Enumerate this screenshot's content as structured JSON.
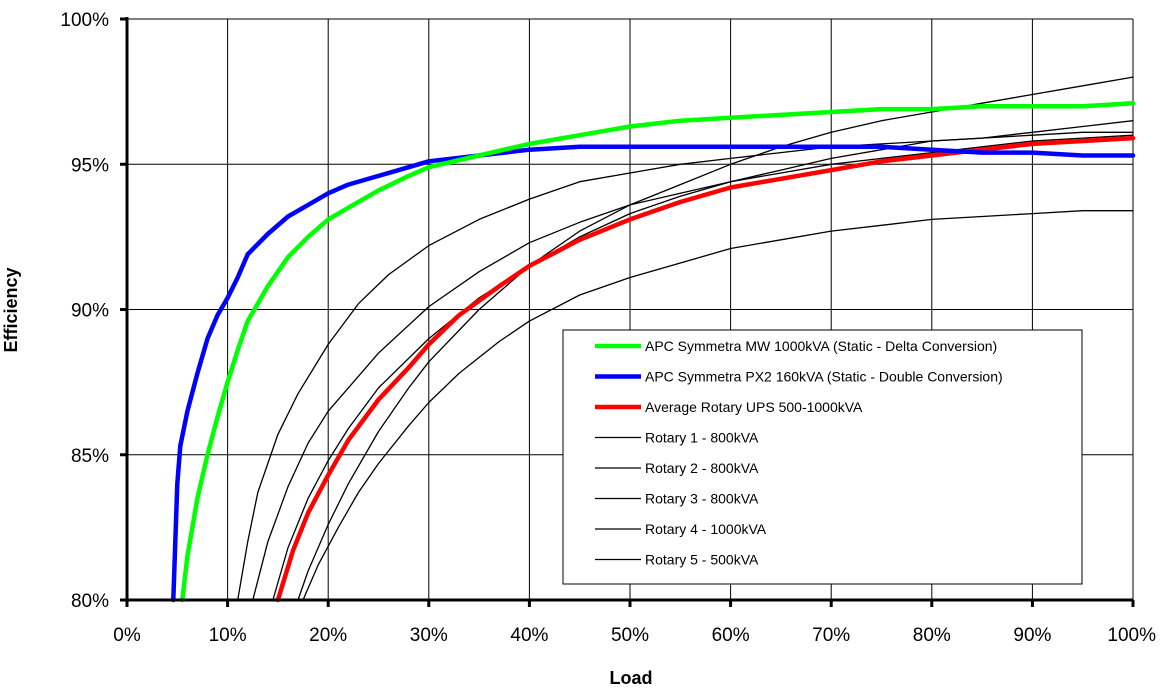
{
  "chart_data": {
    "type": "line",
    "xlabel": "Load",
    "ylabel": "Efficiency",
    "xlim": [
      0,
      100
    ],
    "ylim": [
      80,
      100
    ],
    "grid": true,
    "legend_position": "bottom-right",
    "x_ticks": [
      "0%",
      "10%",
      "20%",
      "30%",
      "40%",
      "50%",
      "60%",
      "70%",
      "80%",
      "90%",
      "100%"
    ],
    "y_ticks": [
      "80%",
      "85%",
      "90%",
      "95%",
      "100%"
    ],
    "series": [
      {
        "name": "Rotary 1 - 800kVA",
        "color": "#000000",
        "points": [
          [
            11,
            80
          ],
          [
            12,
            82
          ],
          [
            13,
            83.7
          ],
          [
            15,
            85.7
          ],
          [
            17,
            87.1
          ],
          [
            20,
            88.8
          ],
          [
            23,
            90.2
          ],
          [
            26,
            91.2
          ],
          [
            30,
            92.2
          ],
          [
            35,
            93.1
          ],
          [
            40,
            93.8
          ],
          [
            45,
            94.4
          ],
          [
            50,
            94.7
          ],
          [
            55,
            95
          ],
          [
            60,
            95.2
          ],
          [
            65,
            95.4
          ],
          [
            70,
            95.6
          ],
          [
            75,
            95.7
          ],
          [
            80,
            95.8
          ],
          [
            85,
            95.9
          ],
          [
            90,
            96
          ],
          [
            95,
            96.1
          ],
          [
            100,
            96.1
          ]
        ]
      },
      {
        "name": "Rotary 2 - 800kVA",
        "color": "#000000",
        "points": [
          [
            12.5,
            80
          ],
          [
            14,
            82
          ],
          [
            16,
            83.9
          ],
          [
            18,
            85.4
          ],
          [
            20,
            86.5
          ],
          [
            25,
            88.5
          ],
          [
            30,
            90.1
          ],
          [
            35,
            91.3
          ],
          [
            40,
            92.3
          ],
          [
            45,
            93
          ],
          [
            50,
            93.6
          ],
          [
            55,
            94
          ],
          [
            60,
            94.4
          ],
          [
            65,
            94.7
          ],
          [
            70,
            95
          ],
          [
            75,
            95.2
          ],
          [
            80,
            95.4
          ],
          [
            85,
            95.6
          ],
          [
            90,
            95.8
          ],
          [
            95,
            95.9
          ],
          [
            100,
            96
          ]
        ]
      },
      {
        "name": "Rotary 3 - 800kVA",
        "color": "#000000",
        "points": [
          [
            14.5,
            80
          ],
          [
            16,
            81.8
          ],
          [
            18,
            83.5
          ],
          [
            20,
            84.8
          ],
          [
            22,
            85.9
          ],
          [
            25,
            87.3
          ],
          [
            30,
            89
          ],
          [
            35,
            90.4
          ],
          [
            40,
            91.5
          ],
          [
            45,
            92.5
          ],
          [
            50,
            93.3
          ],
          [
            55,
            93.9
          ],
          [
            60,
            94.4
          ],
          [
            65,
            94.8
          ],
          [
            70,
            95.2
          ],
          [
            75,
            95.5
          ],
          [
            80,
            95.8
          ],
          [
            85,
            95.9
          ],
          [
            90,
            96.1
          ],
          [
            95,
            96.3
          ],
          [
            100,
            96.5
          ]
        ]
      },
      {
        "name": "Rotary 4 - 1000kVA",
        "color": "#000000",
        "points": [
          [
            17,
            80
          ],
          [
            18,
            81
          ],
          [
            20,
            82.6
          ],
          [
            22,
            84
          ],
          [
            25,
            85.8
          ],
          [
            28,
            87.3
          ],
          [
            30,
            88.2
          ],
          [
            35,
            90
          ],
          [
            40,
            91.5
          ],
          [
            45,
            92.7
          ],
          [
            50,
            93.6
          ],
          [
            55,
            94.3
          ],
          [
            60,
            95
          ],
          [
            65,
            95.6
          ],
          [
            70,
            96.1
          ],
          [
            75,
            96.5
          ],
          [
            80,
            96.8
          ],
          [
            85,
            97.1
          ],
          [
            90,
            97.4
          ],
          [
            95,
            97.7
          ],
          [
            100,
            98
          ]
        ]
      },
      {
        "name": "Rotary 5 - 500kVA",
        "color": "#000000",
        "points": [
          [
            17.5,
            80
          ],
          [
            19,
            81.2
          ],
          [
            21,
            82.5
          ],
          [
            23,
            83.7
          ],
          [
            25,
            84.7
          ],
          [
            28,
            86
          ],
          [
            30,
            86.8
          ],
          [
            33,
            87.8
          ],
          [
            37,
            88.9
          ],
          [
            40,
            89.6
          ],
          [
            45,
            90.5
          ],
          [
            50,
            91.1
          ],
          [
            55,
            91.6
          ],
          [
            60,
            92.1
          ],
          [
            65,
            92.4
          ],
          [
            70,
            92.7
          ],
          [
            75,
            92.9
          ],
          [
            80,
            93.1
          ],
          [
            85,
            93.2
          ],
          [
            90,
            93.3
          ],
          [
            95,
            93.4
          ],
          [
            100,
            93.4
          ]
        ]
      },
      {
        "name": "Average Rotary UPS 500-1000kVA",
        "color": "#ff0000",
        "points": [
          [
            15,
            80
          ],
          [
            16.5,
            81.7
          ],
          [
            18,
            83
          ],
          [
            20,
            84.3
          ],
          [
            22,
            85.5
          ],
          [
            25,
            86.9
          ],
          [
            28,
            88
          ],
          [
            30,
            88.8
          ],
          [
            33,
            89.8
          ],
          [
            37,
            90.8
          ],
          [
            40,
            91.5
          ],
          [
            45,
            92.4
          ],
          [
            50,
            93.1
          ],
          [
            55,
            93.7
          ],
          [
            60,
            94.2
          ],
          [
            65,
            94.5
          ],
          [
            70,
            94.8
          ],
          [
            75,
            95.1
          ],
          [
            80,
            95.3
          ],
          [
            85,
            95.5
          ],
          [
            90,
            95.7
          ],
          [
            95,
            95.8
          ],
          [
            100,
            95.9
          ]
        ]
      },
      {
        "name": "APC Symmetra PX2 160kVA (Static - Double Conversion)",
        "color": "#0000ff",
        "points": [
          [
            4.6,
            80
          ],
          [
            5,
            84
          ],
          [
            5.3,
            85.3
          ],
          [
            6,
            86.5
          ],
          [
            7,
            87.8
          ],
          [
            8,
            89
          ],
          [
            9,
            89.8
          ],
          [
            10,
            90.4
          ],
          [
            11,
            91.1
          ],
          [
            12,
            91.9
          ],
          [
            14,
            92.6
          ],
          [
            16,
            93.2
          ],
          [
            18,
            93.6
          ],
          [
            20,
            94
          ],
          [
            22,
            94.3
          ],
          [
            25,
            94.6
          ],
          [
            28,
            94.9
          ],
          [
            30,
            95.1
          ],
          [
            35,
            95.3
          ],
          [
            40,
            95.5
          ],
          [
            45,
            95.6
          ],
          [
            50,
            95.6
          ],
          [
            55,
            95.6
          ],
          [
            60,
            95.6
          ],
          [
            65,
            95.6
          ],
          [
            70,
            95.6
          ],
          [
            75,
            95.6
          ],
          [
            80,
            95.5
          ],
          [
            85,
            95.4
          ],
          [
            90,
            95.4
          ],
          [
            95,
            95.3
          ],
          [
            100,
            95.3
          ]
        ]
      },
      {
        "name": "APC Symmetra MW 1000kVA (Static - Delta Conversion)",
        "color": "#00ff00",
        "points": [
          [
            5.5,
            80
          ],
          [
            6,
            81.5
          ],
          [
            7,
            83.5
          ],
          [
            8,
            85
          ],
          [
            9,
            86.3
          ],
          [
            10,
            87.5
          ],
          [
            11,
            88.6
          ],
          [
            12,
            89.6
          ],
          [
            14,
            90.8
          ],
          [
            16,
            91.8
          ],
          [
            18,
            92.5
          ],
          [
            20,
            93.1
          ],
          [
            22,
            93.5
          ],
          [
            25,
            94.1
          ],
          [
            28,
            94.6
          ],
          [
            30,
            94.9
          ],
          [
            35,
            95.3
          ],
          [
            40,
            95.7
          ],
          [
            45,
            96
          ],
          [
            50,
            96.3
          ],
          [
            55,
            96.5
          ],
          [
            60,
            96.6
          ],
          [
            65,
            96.7
          ],
          [
            70,
            96.8
          ],
          [
            75,
            96.9
          ],
          [
            80,
            96.9
          ],
          [
            85,
            97
          ],
          [
            90,
            97
          ],
          [
            95,
            97
          ],
          [
            100,
            97.1
          ]
        ]
      }
    ],
    "legend": [
      {
        "label": "APC Symmetra MW 1000kVA (Static - Delta Conversion)",
        "color": "#00ff00",
        "thick": true
      },
      {
        "label": "APC Symmetra PX2 160kVA (Static - Double Conversion)",
        "color": "#0000ff",
        "thick": true
      },
      {
        "label": "Average Rotary UPS 500-1000kVA",
        "color": "#ff0000",
        "thick": true
      },
      {
        "label": "Rotary 1 - 800kVA",
        "color": "#000000",
        "thick": false
      },
      {
        "label": "Rotary 2 - 800kVA",
        "color": "#000000",
        "thick": false
      },
      {
        "label": "Rotary 3 - 800kVA",
        "color": "#000000",
        "thick": false
      },
      {
        "label": "Rotary 4 - 1000kVA",
        "color": "#000000",
        "thick": false
      },
      {
        "label": "Rotary 5 - 500kVA",
        "color": "#000000",
        "thick": false
      }
    ]
  }
}
